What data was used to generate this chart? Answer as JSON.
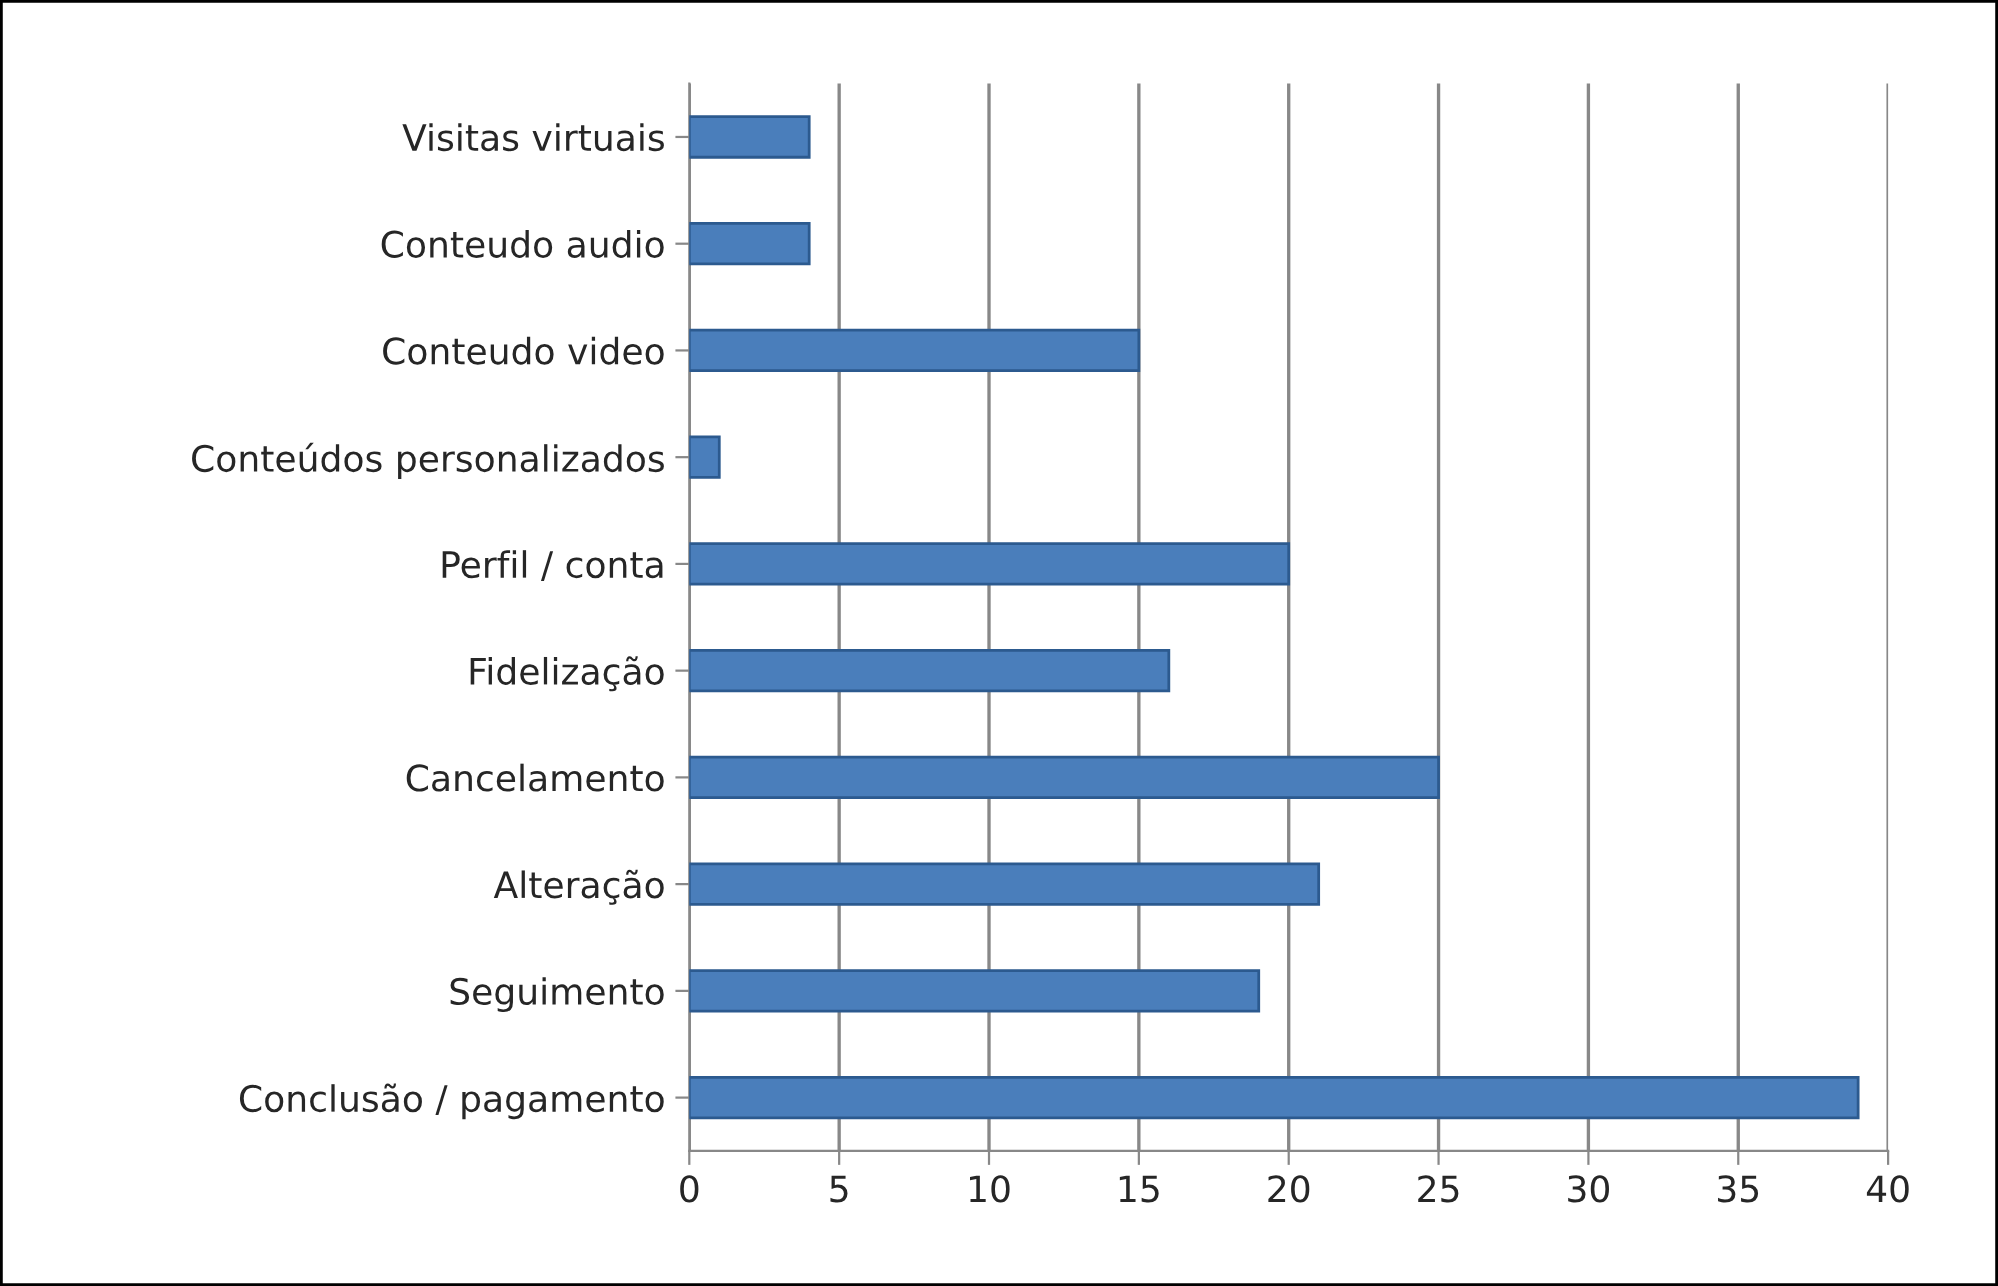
{
  "chart_data": {
    "type": "bar",
    "orientation": "horizontal",
    "categories": [
      "Visitas virtuais",
      "Conteudo audio",
      "Conteudo video",
      "Conteúdos personalizados",
      "Perfil / conta",
      "Fidelização",
      "Cancelamento",
      "Alteração",
      "Seguimento",
      "Conclusão / pagamento"
    ],
    "values": [
      4,
      4,
      15,
      1,
      20,
      16,
      25,
      21,
      19,
      39
    ],
    "color": "#4a7ebb",
    "xlim": [
      0,
      40
    ],
    "xticks": [
      0,
      5,
      10,
      15,
      20,
      25,
      30,
      35,
      40
    ],
    "grid": "x"
  }
}
